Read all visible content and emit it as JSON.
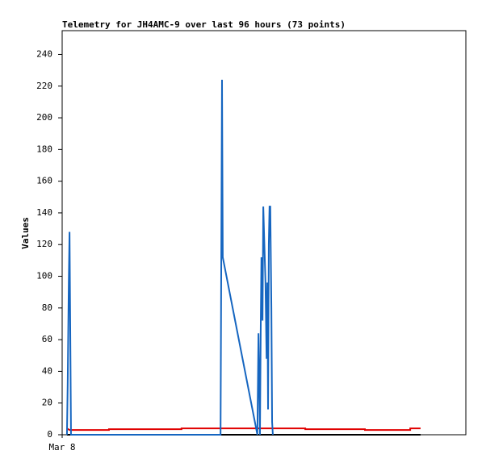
{
  "chart_data": {
    "type": "line",
    "title": "Telemetry for JH4AMC-9 over last 96 hours (73 points)",
    "y_label": "Values",
    "xlim": [
      0,
      109.6
    ],
    "xticks": [
      {
        "value": 0,
        "label": "Mar 8"
      }
    ],
    "ylim": [
      0,
      255
    ],
    "yticks": [
      0,
      20,
      40,
      60,
      80,
      100,
      120,
      140,
      160,
      180,
      200,
      220,
      240
    ],
    "series": [
      {
        "color": "#000000",
        "x": [
          1.3,
          97.3
        ],
        "values": [
          0,
          0
        ]
      },
      {
        "color": "#e00000",
        "x": [
          1.3,
          2.0,
          12.7,
          12.7,
          32.4,
          32.4,
          66.0,
          66.0,
          82.2,
          82.2,
          94.5,
          94.5,
          97.3
        ],
        "values": [
          4,
          3,
          3,
          3.5,
          3.5,
          4,
          4,
          3.5,
          3.5,
          3,
          3,
          4,
          4
        ]
      },
      {
        "color": "#1565c0",
        "x": [
          1.3,
          1.5,
          1.8,
          2.0,
          2.2,
          2.4,
          43.0,
          43.2,
          43.4,
          43.6,
          53.0,
          53.3,
          53.5,
          53.7,
          53.9,
          54.1,
          54.4,
          54.6,
          54.8,
          55.0,
          55.2,
          55.5,
          55.7,
          55.9,
          56.1,
          56.3,
          56.5,
          56.8,
          57.0,
          57.2
        ],
        "values": [
          0,
          32,
          96,
          128,
          64,
          0,
          0,
          112,
          224,
          112,
          0,
          64,
          32,
          0,
          64,
          112,
          72,
          144,
          128,
          112,
          96,
          48,
          96,
          16,
          120,
          144,
          144,
          80,
          8,
          0
        ]
      }
    ]
  }
}
